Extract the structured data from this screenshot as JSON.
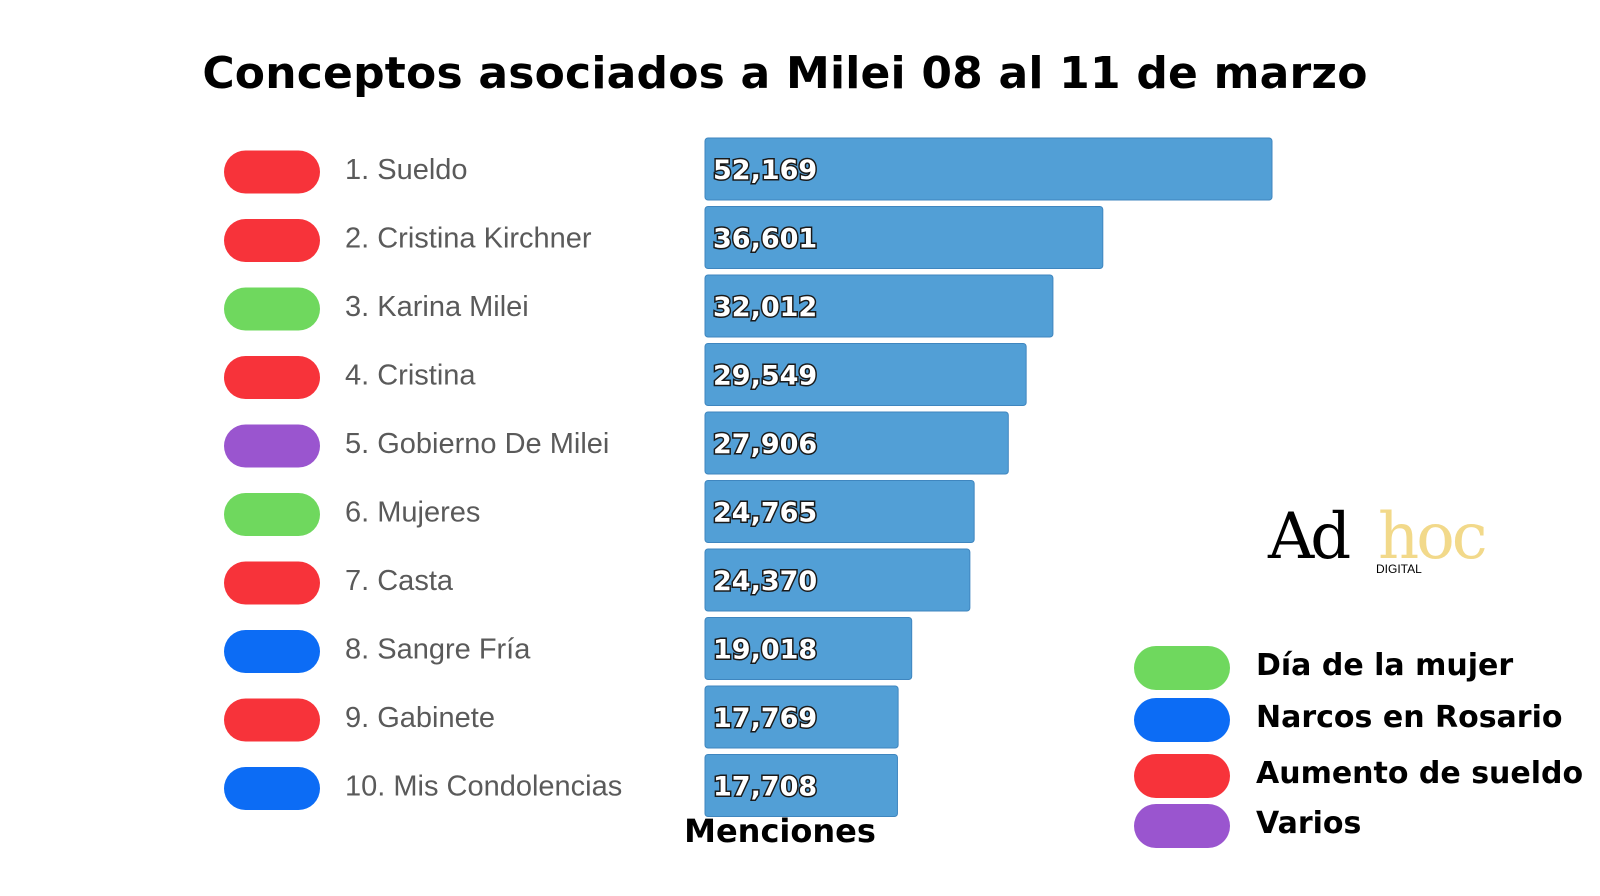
{
  "chart_data": {
    "type": "bar",
    "orientation": "horizontal",
    "title": "Conceptos asociados a Milei 08 al 11 de marzo",
    "xlabel": "Menciones",
    "categories": [
      "1. Sueldo",
      "2. Cristina Kirchner",
      "3. Karina Milei",
      "4. Cristina",
      "5. Gobierno De Milei",
      "6. Mujeres",
      "7. Casta",
      "8. Sangre Fría",
      "9. Gabinete",
      "10. Mis Condolencias"
    ],
    "values": [
      52169,
      36601,
      32012,
      29549,
      27906,
      24765,
      24370,
      19018,
      17769,
      17708
    ],
    "value_labels": [
      "52,169",
      "36,601",
      "32,012",
      "29,549",
      "27,906",
      "24,765",
      "24,370",
      "19,018",
      "17,769",
      "17,708"
    ],
    "groups": [
      "Aumento de sueldo",
      "Aumento de sueldo",
      "Día de la mujer",
      "Aumento de sueldo",
      "Varios",
      "Día de la mujer",
      "Aumento de sueldo",
      "Narcos en Rosario",
      "Aumento de sueldo",
      "Narcos en Rosario"
    ],
    "bar_color": "#529fd6",
    "legend": [
      {
        "label": "Día de la mujer",
        "color": "#6fd85e"
      },
      {
        "label": "Narcos en Rosario",
        "color": "#0c6cf5"
      },
      {
        "label": "Aumento de sueldo",
        "color": "#f7333a"
      },
      {
        "label": "Varios",
        "color": "#9a55cf"
      }
    ],
    "legend_position": "bottom-right"
  },
  "logo": {
    "main": "Ad",
    "accent": "hoc",
    "sub": "DIGITAL"
  }
}
